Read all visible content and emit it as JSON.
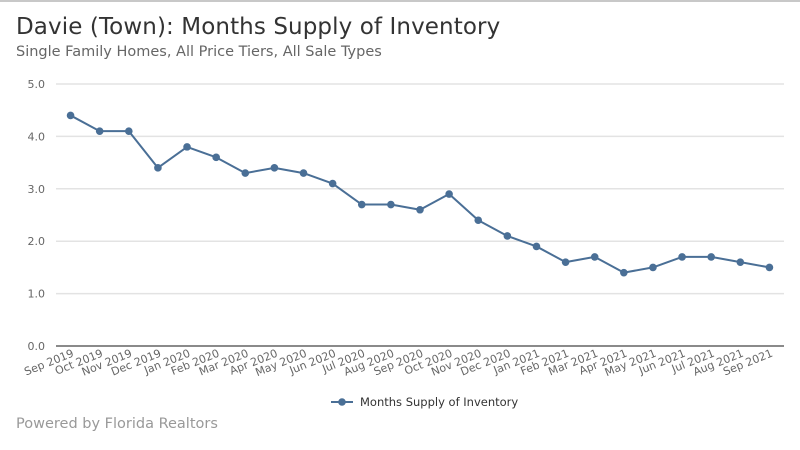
{
  "header": {
    "title": "Davie (Town): Months Supply of Inventory",
    "subtitle": "Single Family Homes, All Price Tiers, All Sale Types"
  },
  "footer": {
    "credit": "Powered by Florida Realtors"
  },
  "chart_data": {
    "type": "line",
    "title": "Davie (Town): Months Supply of Inventory",
    "subtitle": "Single Family Homes, All Price Tiers, All Sale Types",
    "xlabel": "",
    "ylabel": "",
    "ylim": [
      0,
      5
    ],
    "yticks": [
      "0.0",
      "1.0",
      "2.0",
      "3.0",
      "4.0",
      "5.0"
    ],
    "grid": true,
    "legend_position": "bottom-center",
    "line_color": "#4a6f96",
    "categories": [
      "Sep 2019",
      "Oct 2019",
      "Nov 2019",
      "Dec 2019",
      "Jan 2020",
      "Feb 2020",
      "Mar 2020",
      "Apr 2020",
      "May 2020",
      "Jun 2020",
      "Jul 2020",
      "Aug 2020",
      "Sep 2020",
      "Oct 2020",
      "Nov 2020",
      "Dec 2020",
      "Jan 2021",
      "Feb 2021",
      "Mar 2021",
      "Apr 2021",
      "May 2021",
      "Jun 2021",
      "Jul 2021",
      "Aug 2021",
      "Sep 2021"
    ],
    "series": [
      {
        "name": "Months Supply of Inventory",
        "values": [
          4.4,
          4.1,
          4.1,
          3.4,
          3.8,
          3.6,
          3.3,
          3.4,
          3.3,
          3.1,
          2.7,
          2.7,
          2.6,
          2.9,
          2.4,
          2.1,
          1.9,
          1.6,
          1.7,
          1.4,
          1.5,
          1.7,
          1.7,
          1.6,
          1.5
        ]
      }
    ]
  }
}
